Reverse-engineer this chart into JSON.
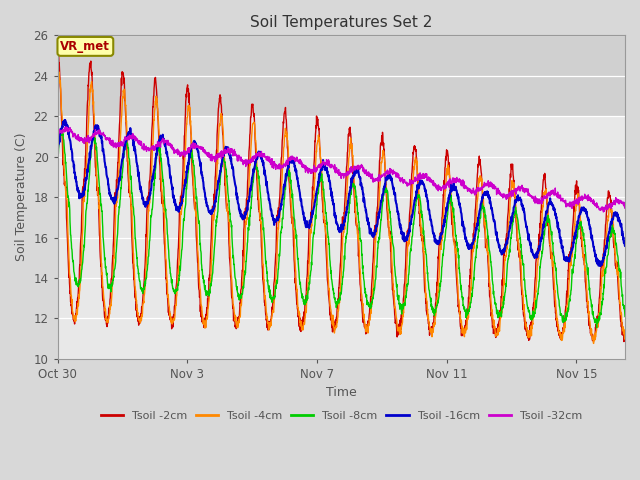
{
  "title": "Soil Temperatures Set 2",
  "xlabel": "Time",
  "ylabel": "Soil Temperature (C)",
  "ylim": [
    10,
    26
  ],
  "yticks": [
    10,
    12,
    14,
    16,
    18,
    20,
    22,
    24,
    26
  ],
  "fig_bg_color": "#d8d8d8",
  "plot_bg_color": "#e8e8e8",
  "plot_bg_top": "#d0d0d0",
  "annotation_text": "VR_met",
  "colors": {
    "Tsoil -2cm": "#cc0000",
    "Tsoil -4cm": "#ff8800",
    "Tsoil -8cm": "#00cc00",
    "Tsoil -16cm": "#0000cc",
    "Tsoil -32cm": "#cc00cc"
  },
  "xtick_labels": [
    "Oct 30",
    "Nov 3",
    "Nov 7",
    "Nov 11",
    "Nov 15"
  ],
  "xtick_positions": [
    0,
    4,
    8,
    12,
    16
  ],
  "xlim": [
    0,
    17.5
  ],
  "n_days": 17.5,
  "n_points": 2100
}
